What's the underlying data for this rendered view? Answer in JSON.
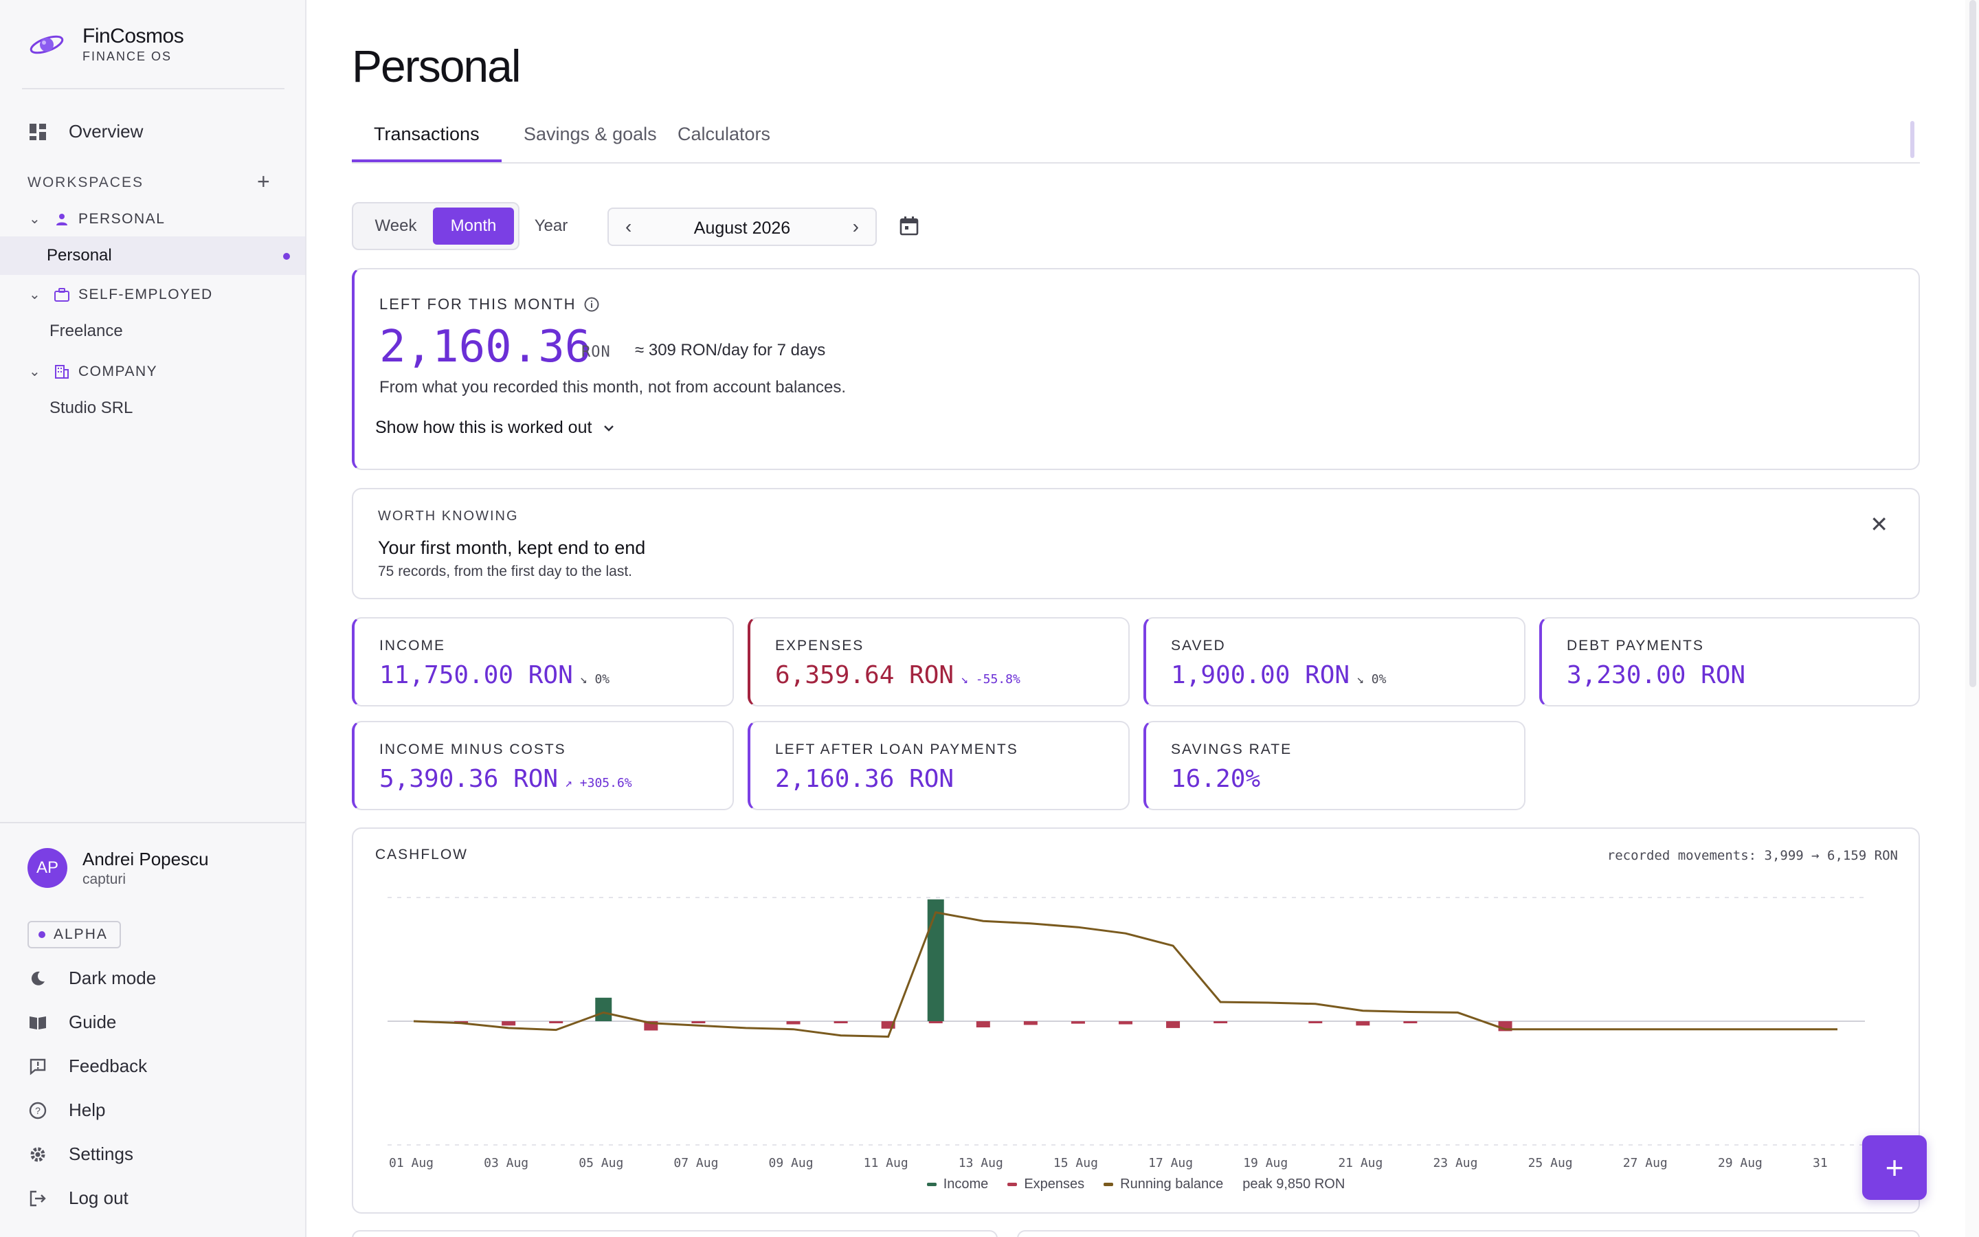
{
  "brand": {
    "name": "FinCosmos",
    "subtitle": "FINANCE OS"
  },
  "sidebar": {
    "overview_label": "Overview",
    "workspaces_title": "WORKSPACES",
    "add_symbol": "+",
    "groups": [
      {
        "label": "PERSONAL",
        "items": [
          "Personal"
        ]
      },
      {
        "label": "SELF-EMPLOYED",
        "items": [
          "Freelance"
        ]
      },
      {
        "label": "COMPANY",
        "items": [
          "Studio SRL"
        ]
      }
    ],
    "user": {
      "initials": "AP",
      "name": "Andrei Popescu",
      "sub": "capturi"
    },
    "badge": "ALPHA",
    "menu": [
      "Dark mode",
      "Guide",
      "Feedback",
      "Help",
      "Settings",
      "Log out"
    ]
  },
  "page": {
    "title": "Personal"
  },
  "tabs": [
    "Transactions",
    "Savings & goals",
    "Calculators"
  ],
  "period": {
    "options": [
      "Week",
      "Month",
      "Year"
    ],
    "selected": "Month",
    "label": "August 2026"
  },
  "left_card": {
    "label": "LEFT FOR THIS MONTH",
    "amount": "2,160.36",
    "currency": "RON",
    "per_day": "≈ 309 RON/day for 7 days",
    "explanation": "From what you recorded this month, not from account balances.",
    "show_how": "Show how this is worked out"
  },
  "worth_knowing": {
    "label": "WORTH KNOWING",
    "headline": "Your first month, kept end to end",
    "sub": "75 records, from the first day to the last."
  },
  "stats": [
    {
      "label": "INCOME",
      "value": "11,750.00 RON",
      "change": "↘ 0%"
    },
    {
      "label": "EXPENSES",
      "value": "6,359.64 RON",
      "change": "↘ -55.8%"
    },
    {
      "label": "SAVED",
      "value": "1,900.00 RON",
      "change": "↘ 0%"
    },
    {
      "label": "DEBT PAYMENTS",
      "value": "3,230.00 RON",
      "change": ""
    },
    {
      "label": "INCOME MINUS COSTS",
      "value": "5,390.36 RON",
      "change": "↗ +305.6%"
    },
    {
      "label": "LEFT AFTER LOAN PAYMENTS",
      "value": "2,160.36 RON",
      "change": ""
    },
    {
      "label": "SAVINGS RATE",
      "value": "16.20%",
      "change": ""
    }
  ],
  "colors": {
    "accent": "#7b3fe4",
    "income": "#2f6b4f",
    "expense": "#b23a50",
    "balance": "#7a5a1e"
  },
  "chart_data": {
    "type": "bar",
    "title": "CASHFLOW",
    "annotation": "recorded movements: 3,999 → 6,159 RON",
    "peak_label": "peak 9,850 RON",
    "x_ticks": [
      "01 Aug",
      "03 Aug",
      "05 Aug",
      "07 Aug",
      "09 Aug",
      "11 Aug",
      "13 Aug",
      "15 Aug",
      "17 Aug",
      "19 Aug",
      "21 Aug",
      "23 Aug",
      "25 Aug",
      "27 Aug",
      "29 Aug",
      "31"
    ],
    "days": [
      1,
      2,
      3,
      4,
      5,
      6,
      7,
      8,
      9,
      10,
      11,
      12,
      13,
      14,
      15,
      16,
      17,
      18,
      19,
      20,
      21,
      22,
      23,
      24,
      25,
      26,
      27,
      28,
      29,
      30,
      31
    ],
    "series": [
      {
        "name": "Income",
        "type": "bar",
        "values": [
          0,
          0,
          0,
          0,
          1900,
          0,
          0,
          0,
          0,
          0,
          0,
          9850,
          0,
          0,
          0,
          0,
          0,
          0,
          0,
          0,
          0,
          0,
          0,
          0,
          0,
          0,
          0,
          0,
          0,
          0,
          0
        ]
      },
      {
        "name": "Expenses",
        "type": "bar",
        "values": [
          0,
          -120,
          -350,
          -120,
          0,
          -750,
          -150,
          0,
          -250,
          -100,
          -600,
          -100,
          -500,
          -300,
          -200,
          -250,
          -550,
          -100,
          0,
          -100,
          -350,
          -100,
          0,
          -800,
          0,
          0,
          0,
          0,
          0,
          0,
          0
        ]
      },
      {
        "name": "Running balance",
        "type": "line",
        "values": [
          0,
          -150,
          -550,
          -700,
          700,
          -150,
          -350,
          -550,
          -650,
          -1150,
          -1250,
          8800,
          8100,
          7900,
          7600,
          7100,
          6100,
          1550,
          1500,
          1400,
          850,
          750,
          700,
          -650,
          -650,
          -650,
          -650,
          -650,
          -650,
          -650,
          -650
        ]
      }
    ],
    "y_range": [
      -10000,
      10000
    ],
    "legend": [
      "Income",
      "Expenses",
      "Running balance"
    ]
  }
}
